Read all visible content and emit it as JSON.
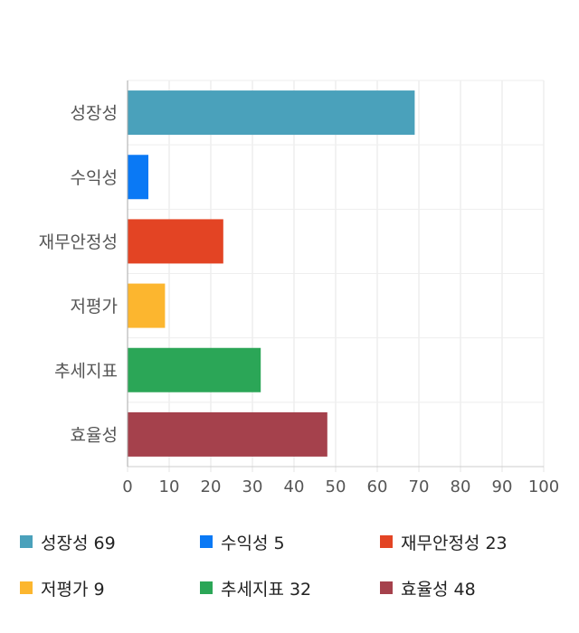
{
  "chart_data": {
    "type": "bar",
    "orientation": "horizontal",
    "categories": [
      "성장성",
      "수익성",
      "재무안정성",
      "저평가",
      "추세지표",
      "효율성"
    ],
    "values": [
      69,
      5,
      23,
      9,
      32,
      48
    ],
    "colors": [
      "#4aa1bb",
      "#0a79f5",
      "#e34424",
      "#fcb62f",
      "#2ba657",
      "#a5414c"
    ],
    "xlim": [
      0,
      100
    ],
    "xticks": [
      "0",
      "10",
      "20",
      "30",
      "40",
      "50",
      "60",
      "70",
      "80",
      "90",
      "100"
    ],
    "grid": true,
    "legend_position": "bottom"
  },
  "legend": [
    {
      "name": "성장성",
      "value": "69"
    },
    {
      "name": "수익성",
      "value": "5"
    },
    {
      "name": "재무안정성",
      "value": "23"
    },
    {
      "name": "저평가",
      "value": "9"
    },
    {
      "name": "추세지표",
      "value": "32"
    },
    {
      "name": "효율성",
      "value": "48"
    }
  ]
}
